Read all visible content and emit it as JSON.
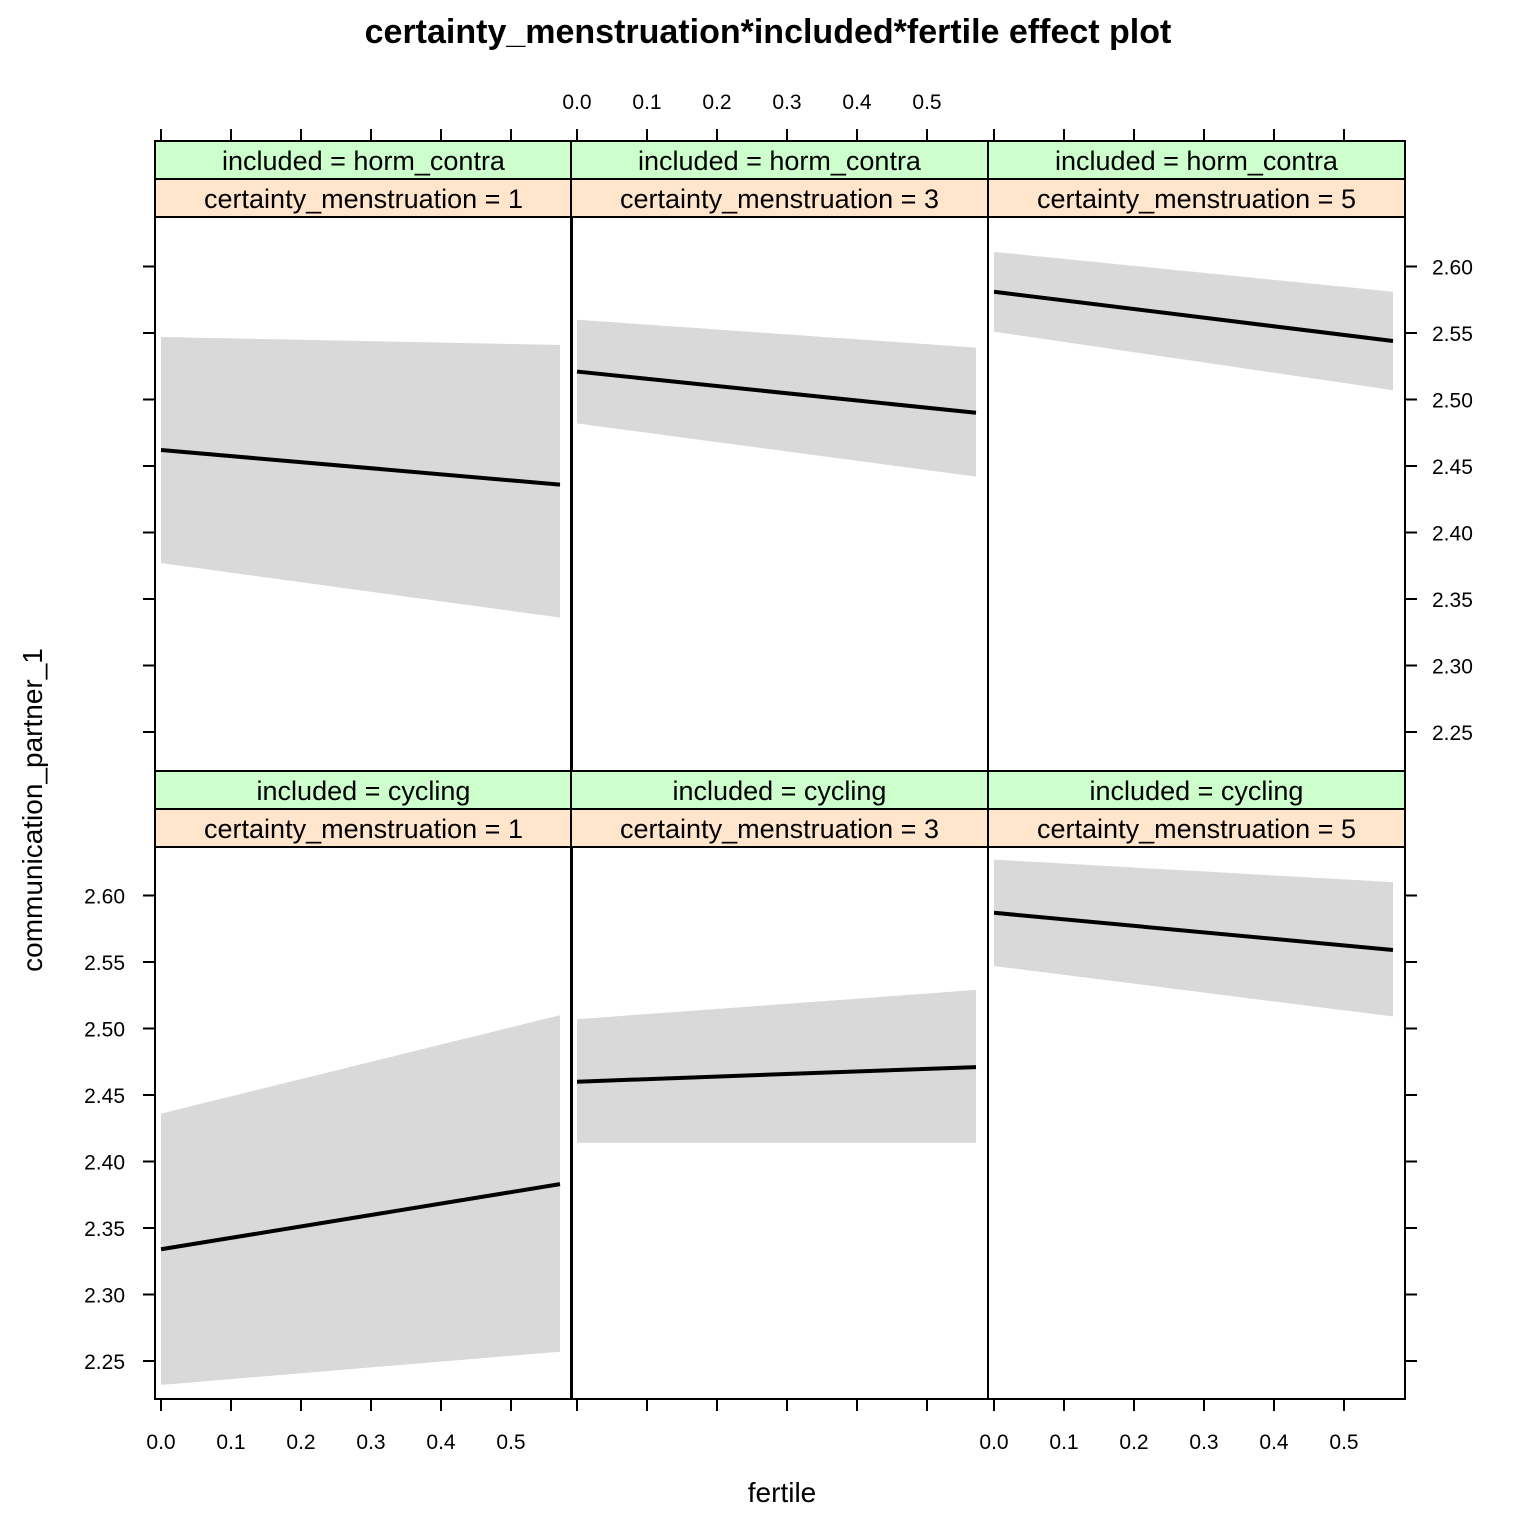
{
  "chart_data": {
    "type": "line",
    "title": "certainty_menstruation*included*fertile effect plot",
    "xlabel": "fertile",
    "ylabel": "communication_partner_1",
    "xlim": [
      0.0,
      0.5
    ],
    "ylim": [
      2.2,
      2.6
    ],
    "x_ticks": [
      0.0,
      0.1,
      0.2,
      0.3,
      0.4,
      0.5
    ],
    "x_tick_labels": [
      "0.0",
      "0.1",
      "0.2",
      "0.3",
      "0.4",
      "0.5"
    ],
    "y_ticks": [
      2.25,
      2.3,
      2.35,
      2.4,
      2.45,
      2.5,
      2.55,
      2.6
    ],
    "y_tick_labels": [
      "2.25",
      "2.30",
      "2.35",
      "2.40",
      "2.45",
      "2.50",
      "2.55",
      "2.60"
    ],
    "line_color": "#000000",
    "band_color": "#d9d9d9",
    "strip_colors": {
      "included": "#ccffcc",
      "certainty": "#ffe5cc"
    },
    "grid": false,
    "panels": [
      {
        "row": "top",
        "col": 1,
        "strip_included": "included = horm_contra",
        "strip_certainty": "certainty_menstruation = 1",
        "x": [
          0.0,
          0.57
        ],
        "fit": [
          2.462,
          2.436
        ],
        "lower": [
          2.377,
          2.336
        ],
        "upper": [
          2.547,
          2.541
        ]
      },
      {
        "row": "top",
        "col": 2,
        "strip_included": "included = horm_contra",
        "strip_certainty": "certainty_menstruation = 3",
        "x": [
          0.0,
          0.57
        ],
        "fit": [
          2.521,
          2.49
        ],
        "lower": [
          2.482,
          2.442
        ],
        "upper": [
          2.56,
          2.539
        ]
      },
      {
        "row": "top",
        "col": 3,
        "strip_included": "included = horm_contra",
        "strip_certainty": "certainty_menstruation = 5",
        "x": [
          0.0,
          0.57
        ],
        "fit": [
          2.581,
          2.544
        ],
        "lower": [
          2.551,
          2.507
        ],
        "upper": [
          2.611,
          2.581
        ]
      },
      {
        "row": "bottom",
        "col": 1,
        "strip_included": "included = cycling",
        "strip_certainty": "certainty_menstruation = 1",
        "x": [
          0.0,
          0.57
        ],
        "fit": [
          2.334,
          2.383
        ],
        "lower": [
          2.232,
          2.257
        ],
        "upper": [
          2.436,
          2.51
        ]
      },
      {
        "row": "bottom",
        "col": 2,
        "strip_included": "included = cycling",
        "strip_certainty": "certainty_menstruation = 3",
        "x": [
          0.0,
          0.57
        ],
        "fit": [
          2.46,
          2.471
        ],
        "lower": [
          2.414,
          2.414
        ],
        "upper": [
          2.507,
          2.529
        ]
      },
      {
        "row": "bottom",
        "col": 3,
        "strip_included": "included = cycling",
        "strip_certainty": "certainty_menstruation = 5",
        "x": [
          0.0,
          0.57
        ],
        "fit": [
          2.587,
          2.559
        ],
        "lower": [
          2.547,
          2.509
        ],
        "upper": [
          2.627,
          2.61
        ]
      }
    ]
  }
}
